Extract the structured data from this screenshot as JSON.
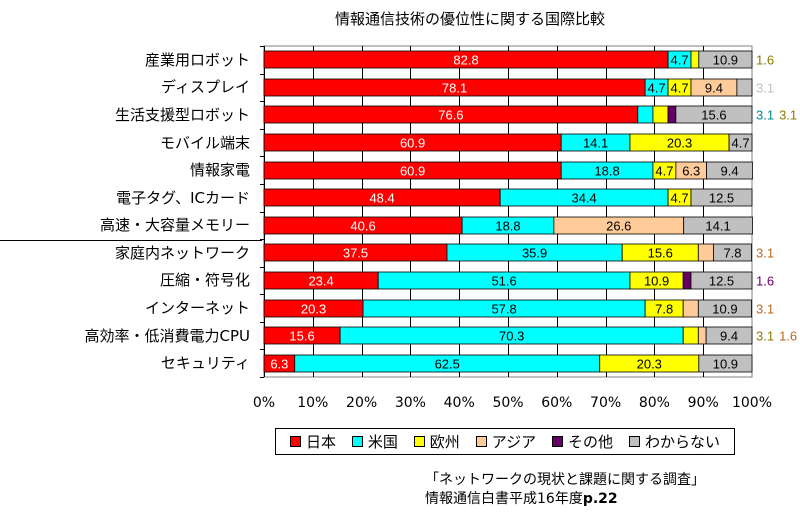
{
  "chart_data": {
    "type": "bar",
    "orientation": "horizontal",
    "stacked": "percent",
    "title": "情報通信技術の優位性に関する国際比較",
    "xlabel": "",
    "ylabel": "",
    "xlim": [
      0,
      100
    ],
    "grid": true,
    "legend_position": "bottom",
    "x_ticks": [
      "0%",
      "10%",
      "20%",
      "30%",
      "40%",
      "50%",
      "60%",
      "70%",
      "80%",
      "90%",
      "100%"
    ],
    "categories": [
      "産業用ロボット",
      "ディスプレイ",
      "生活支援型ロボット",
      "モバイル端末",
      "情報家電",
      "電子タグ、ICカード",
      "高速・大容量メモリー",
      "家庭内ネットワーク",
      "圧縮・符号化",
      "インターネット",
      "高効率・低消費電力CPU",
      "セキュリティ"
    ],
    "series": [
      {
        "name": "日本",
        "color": "#ff0000",
        "label_color": "#ffffff",
        "values": [
          82.8,
          78.1,
          76.6,
          60.9,
          60.9,
          48.4,
          40.6,
          37.5,
          23.4,
          20.3,
          15.6,
          6.3
        ]
      },
      {
        "name": "米国",
        "color": "#00ffff",
        "label_color": "#000000",
        "values": [
          4.7,
          4.7,
          3.1,
          14.1,
          18.8,
          34.4,
          18.8,
          35.9,
          51.6,
          57.8,
          70.3,
          62.5
        ]
      },
      {
        "name": "欧州",
        "color": "#ffff00",
        "label_color": "#000000",
        "values": [
          1.6,
          4.7,
          3.1,
          20.3,
          4.7,
          4.7,
          0,
          15.6,
          10.9,
          7.8,
          3.1,
          20.3
        ]
      },
      {
        "name": "アジア",
        "color": "#ffcc99",
        "label_color": "#000000",
        "values": [
          0,
          9.4,
          0,
          0,
          6.3,
          0,
          26.6,
          3.1,
          0,
          3.1,
          1.6,
          0
        ]
      },
      {
        "name": "その他",
        "color": "#660066",
        "label_color": "#000000",
        "values": [
          0,
          0,
          1.6,
          0,
          0,
          0,
          0,
          0,
          1.6,
          0,
          0,
          0
        ]
      },
      {
        "name": "わからない",
        "color": "#c0c0c0",
        "label_color": "#000000",
        "values": [
          10.9,
          3.1,
          15.6,
          4.7,
          9.4,
          12.5,
          14.1,
          7.8,
          12.5,
          10.9,
          9.4,
          10.9
        ]
      }
    ],
    "annotations": {
      "source_line1": "「ネットワークの現状と課題に関する調査」",
      "source_line2_prefix": "情報通信白書平成16年度",
      "source_line2_page": "p.22"
    }
  }
}
